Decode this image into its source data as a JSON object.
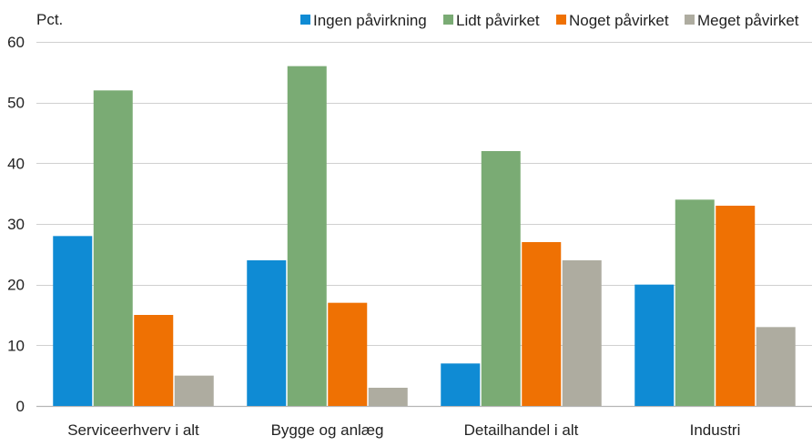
{
  "chart_data": {
    "type": "bar",
    "unit_label": "Pct.",
    "categories": [
      "Serviceerhverv i alt",
      "Bygge og anlæg",
      "Detailhandel i alt",
      "Industri"
    ],
    "series": [
      {
        "name": "Ingen påvirkning",
        "color": "#0f8bd4",
        "values": [
          28,
          24,
          7,
          20
        ]
      },
      {
        "name": "Lidt påvirket",
        "color": "#7aab74",
        "values": [
          52,
          56,
          42,
          34
        ]
      },
      {
        "name": "Noget påvirket",
        "color": "#ef7103",
        "values": [
          15,
          17,
          27,
          33
        ]
      },
      {
        "name": "Meget påvirket",
        "color": "#aeaca0",
        "values": [
          5,
          3,
          24,
          13
        ]
      }
    ],
    "ylim": [
      0,
      60
    ],
    "yticks": [
      0,
      10,
      20,
      30,
      40,
      50,
      60
    ],
    "grid": true,
    "legend_position": "top-right"
  }
}
